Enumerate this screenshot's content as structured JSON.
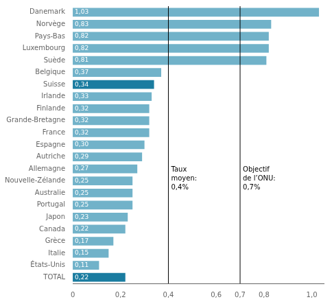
{
  "chart_data": {
    "type": "bar",
    "orientation": "horizontal",
    "categories": [
      "Danemark",
      "Norvège",
      "Pays-Bas",
      "Luxembourg",
      "Suède",
      "Belgique",
      "Suisse",
      "Irlande",
      "Finlande",
      "Grande-Bretagne",
      "France",
      "Espagne",
      "Autriche",
      "Allemagne",
      "Nouvelle-Zélande",
      "Australie",
      "Portugal",
      "Japon",
      "Canada",
      "Grèce",
      "Italie",
      "États-Unis",
      "TOTAL"
    ],
    "values": [
      1.03,
      0.83,
      0.82,
      0.82,
      0.81,
      0.37,
      0.34,
      0.33,
      0.32,
      0.32,
      0.32,
      0.3,
      0.29,
      0.27,
      0.25,
      0.25,
      0.25,
      0.23,
      0.22,
      0.17,
      0.15,
      0.11,
      0.22
    ],
    "value_labels": [
      "1,03",
      "0,83",
      "0,82",
      "0,82",
      "0,81",
      "0,37",
      "0,34",
      "0,33",
      "0,32",
      "0,32",
      "0,32",
      "0,30",
      "0,29",
      "0,27",
      "0,25",
      "0,25",
      "0,25",
      "0,23",
      "0,22",
      "0,17",
      "0,15",
      "0,11",
      "0,22"
    ],
    "data_labels": true,
    "colors": [
      "#71b2c9",
      "#71b2c9",
      "#71b2c9",
      "#71b2c9",
      "#71b2c9",
      "#71b2c9",
      "#1a7ca0",
      "#71b2c9",
      "#71b2c9",
      "#71b2c9",
      "#71b2c9",
      "#71b2c9",
      "#71b2c9",
      "#71b2c9",
      "#71b2c9",
      "#71b2c9",
      "#71b2c9",
      "#71b2c9",
      "#71b2c9",
      "#71b2c9",
      "#71b2c9",
      "#71b2c9",
      "#1a7ca0"
    ],
    "xlim": [
      0,
      1.05
    ],
    "xticks": [
      0,
      {
        "value": 0.2,
        "label": "0,2"
      },
      {
        "value": 0.4,
        "label": "0,4"
      },
      {
        "value": 0.6,
        "label": "0,6"
      },
      {
        "value": 0.7,
        "label": "0,7"
      },
      {
        "value": 0.8,
        "label": "0,8"
      },
      {
        "value": 1.0,
        "label": "1,0"
      }
    ],
    "annotations": [
      {
        "x": 0.4,
        "text": "Taux\nmoyen:\n0,4%"
      },
      {
        "x": 0.7,
        "text": "Objectif\nde l’ONU:\n0,7%"
      }
    ],
    "grid": false
  }
}
